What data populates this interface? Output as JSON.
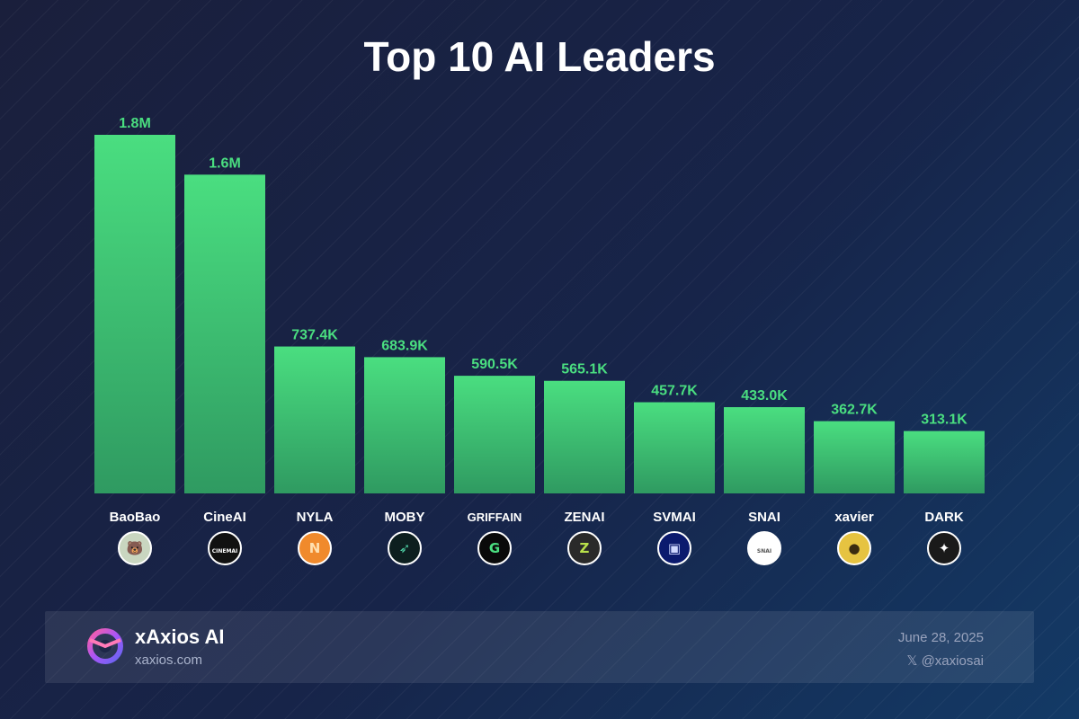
{
  "title": "Top 10 AI Leaders",
  "chart_data": {
    "type": "bar",
    "title": "Top 10 AI Leaders",
    "categories": [
      "BaoBao",
      "CineAI",
      "NYLA",
      "MOBY",
      "GRIFFAIN",
      "ZENAI",
      "SVMAI",
      "SNAI",
      "xavier",
      "DARK"
    ],
    "values": [
      1800000,
      1600000,
      737400,
      683900,
      590500,
      565100,
      457700,
      433000,
      362700,
      313100
    ],
    "value_labels": [
      "1.8M",
      "1.6M",
      "737.4K",
      "683.9K",
      "590.5K",
      "565.1K",
      "457.7K",
      "433.0K",
      "362.7K",
      "313.1K"
    ],
    "avatars": [
      {
        "icon": "baobao-avatar-icon",
        "bg": "#c9d6c0",
        "fg": "#d8a23a",
        "glyph": "🐻"
      },
      {
        "icon": "cineai-avatar-icon",
        "bg": "#111111",
        "fg": "#ffffff",
        "glyph": "CINEMAI"
      },
      {
        "icon": "nyla-avatar-icon",
        "bg": "#f08a2c",
        "fg": "#ffe0b0",
        "glyph": "N"
      },
      {
        "icon": "moby-avatar-icon",
        "bg": "#0d1f1f",
        "fg": "#4fd1a5",
        "glyph": "➶"
      },
      {
        "icon": "griffain-avatar-icon",
        "bg": "#0a0a0a",
        "fg": "#4ade80",
        "glyph": "G"
      },
      {
        "icon": "zenai-avatar-icon",
        "bg": "#2a2a2a",
        "fg": "#b8e04a",
        "glyph": "Z"
      },
      {
        "icon": "svmai-avatar-icon",
        "bg": "#0b1a6e",
        "fg": "#cfd8ff",
        "glyph": "▣"
      },
      {
        "icon": "snai-avatar-icon",
        "bg": "#ffffff",
        "fg": "#555555",
        "glyph": "SNAI"
      },
      {
        "icon": "xavier-avatar-icon",
        "bg": "#e6c341",
        "fg": "#3a2a10",
        "glyph": "●"
      },
      {
        "icon": "dark-avatar-icon",
        "bg": "#1a1a1a",
        "fg": "#ffffff",
        "glyph": "✦"
      }
    ],
    "ylim": [
      0,
      1800000
    ],
    "grid": false,
    "legend": "none",
    "colors": {
      "bar_top": "#4ade80",
      "bar_bottom": "#2f9a61",
      "value_label": "#4ade80",
      "category_label": "#ffffff"
    }
  },
  "footer": {
    "brand_name": "xAxios AI",
    "brand_url": "xaxios.com",
    "date": "June 28, 2025",
    "handle": "𝕏 @xaxiosai",
    "logo_icon": "xaxios-logo-icon"
  }
}
